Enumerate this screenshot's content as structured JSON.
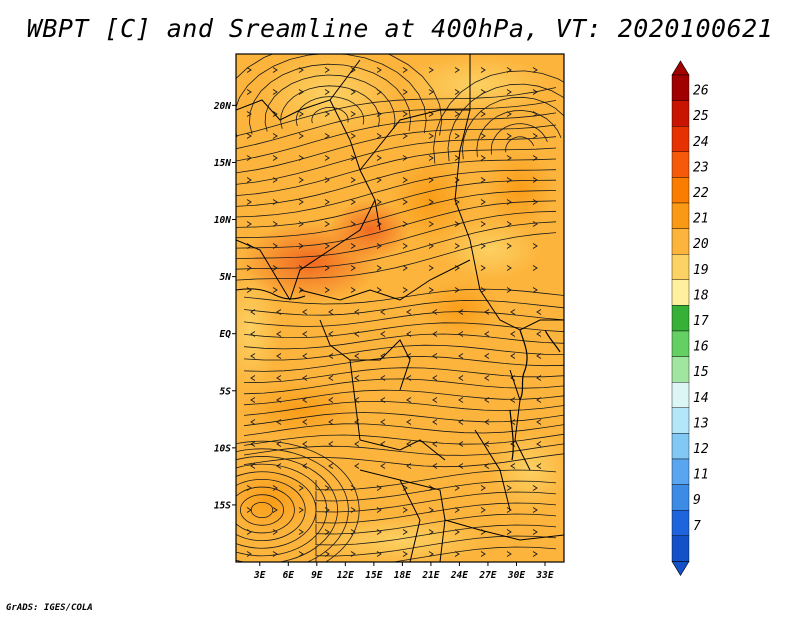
{
  "title": "WBPT [C] and Sreamline at 400hPa, VT: 2020100621",
  "footer": "GrADS: IGES/COLA",
  "map": {
    "lat_labels": [
      "20N",
      "15N",
      "10N",
      "5N",
      "EQ",
      "5S",
      "10S",
      "15S"
    ],
    "lon_labels": [
      "3E",
      "6E",
      "9E",
      "12E",
      "15E",
      "18E",
      "21E",
      "24E",
      "27E",
      "30E",
      "33E"
    ],
    "lat_values": [
      20,
      15,
      10,
      5,
      0,
      -5,
      -10,
      -15
    ],
    "lon_values": [
      3,
      6,
      9,
      12,
      15,
      18,
      21,
      24,
      27,
      30,
      33
    ]
  },
  "colorbar": {
    "labels": [
      "26",
      "25",
      "24",
      "23",
      "22",
      "21",
      "20",
      "19",
      "18",
      "17",
      "16",
      "15",
      "14",
      "13",
      "12",
      "11",
      "9",
      "7"
    ],
    "colors": [
      "#a00000",
      "#c81400",
      "#e63200",
      "#f55a0a",
      "#fa7d00",
      "#fa9a14",
      "#fcb43c",
      "#fcd264",
      "#fff0a0",
      "#36b036",
      "#64d064",
      "#a0e6a0",
      "#dcf5f5",
      "#b4e6fa",
      "#82c8f5",
      "#5aa5f0",
      "#3c8ce6",
      "#1e64dc",
      "#1450c8"
    ],
    "top_arrow_color": "#a00000",
    "bottom_arrow_color": "#1450c8"
  }
}
